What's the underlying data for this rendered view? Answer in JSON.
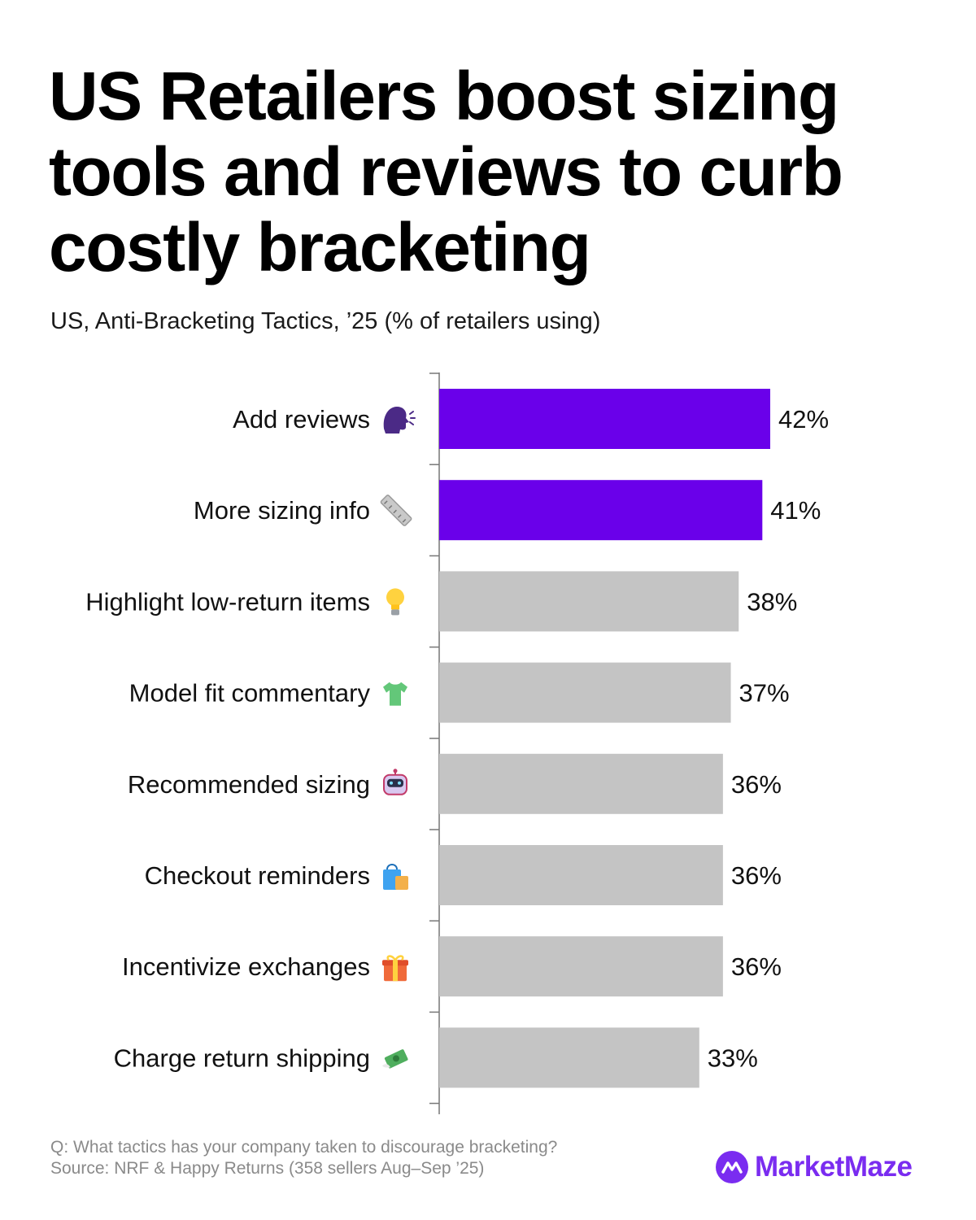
{
  "title": "US Retailers boost sizing tools and reviews to curb costly bracketing",
  "subtitle": "US, Anti-Bracketing Tactics, ’25 (% of retailers using)",
  "chart_data": {
    "type": "bar",
    "orientation": "horizontal",
    "title": "US Retailers boost sizing tools and reviews to curb costly bracketing",
    "subtitle": "US, Anti-Bracketing Tactics, ’25 (% of retailers using)",
    "xlabel": "",
    "ylabel": "",
    "xlim": [
      0,
      50
    ],
    "unit": "%",
    "grid": false,
    "categories": [
      "Add reviews",
      "More sizing info",
      "Highlight low-return items",
      "Model fit commentary",
      "Recommended sizing",
      "Checkout reminders",
      "Incentivize exchanges",
      "Charge return shipping"
    ],
    "values": [
      42,
      41,
      38,
      37,
      36,
      36,
      36,
      33
    ],
    "value_labels": [
      "42%",
      "41%",
      "38%",
      "37%",
      "36%",
      "36%",
      "36%",
      "33%"
    ],
    "icons": [
      "speaking-head-icon",
      "ruler-icon",
      "light-bulb-icon",
      "t-shirt-icon",
      "robot-icon",
      "shopping-bags-icon",
      "gift-icon",
      "money-with-wings-icon"
    ],
    "highlight_color": "#6a00ea",
    "default_color": "#c4c4c4",
    "highlighted": [
      true,
      true,
      false,
      false,
      false,
      false,
      false,
      false
    ]
  },
  "footer": {
    "question": "Q: What tactics has your company taken to discourage bracketing?",
    "source": "Source: NRF & Happy Returns (358 sellers Aug–Sep ’25)"
  },
  "brand": {
    "name": "MarketMaze",
    "color": "#7a2cf0",
    "icon": "marketmaze-logo-icon"
  }
}
